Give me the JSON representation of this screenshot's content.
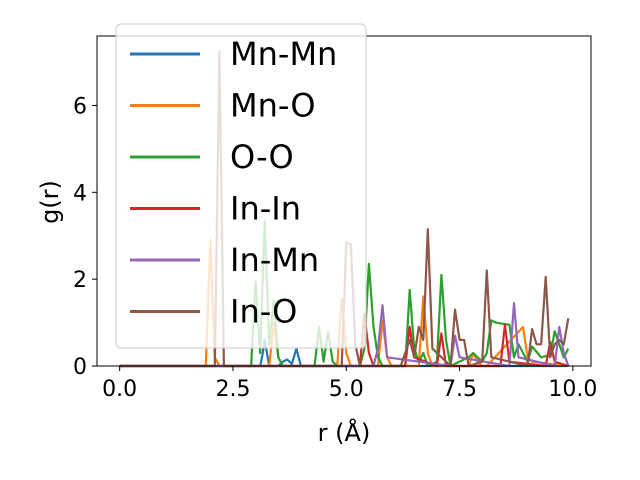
{
  "chart_data": {
    "type": "line",
    "title": "",
    "xlabel": "r (Å)",
    "ylabel": "g(r)",
    "xlim": [
      -0.5,
      10.4
    ],
    "ylim": [
      0,
      7.6
    ],
    "xticks": [
      0.0,
      2.5,
      5.0,
      7.5,
      10.0
    ],
    "xtick_labels": [
      "0.0",
      "2.5",
      "5.0",
      "7.5",
      "10.0"
    ],
    "yticks": [
      0,
      2,
      4,
      6
    ],
    "ytick_labels": [
      "0",
      "2",
      "4",
      "6"
    ],
    "grid": false,
    "legend_position": "top-left",
    "series": [
      {
        "name": "Mn-Mn",
        "color": "#1f77b4",
        "x": [
          0,
          3.1,
          3.15,
          3.2,
          3.3,
          3.5,
          3.6,
          3.7,
          3.8,
          3.9,
          4.0,
          4.1,
          9.9
        ],
        "y": [
          0,
          0,
          0.25,
          0.6,
          0,
          0,
          0.1,
          0.15,
          0.05,
          0.4,
          0,
          0,
          0
        ]
      },
      {
        "name": "Mn-O",
        "color": "#ff7f0e",
        "x": [
          0,
          1.9,
          2.0,
          2.1,
          2.2,
          3.3,
          3.4,
          3.5,
          3.6,
          4.8,
          4.9,
          5.0,
          5.1,
          5.7,
          5.8,
          5.9,
          6.0,
          6.6,
          6.7,
          6.8,
          6.9,
          7.7,
          7.8,
          7.9,
          8.0,
          8.1,
          8.9,
          9.0,
          9.1,
          9.9
        ],
        "y": [
          0,
          0,
          2.9,
          0.2,
          0,
          0,
          1.0,
          0.2,
          0,
          0,
          1.55,
          0.3,
          0,
          0,
          1.05,
          0.2,
          0,
          0,
          1.6,
          0.3,
          0,
          0,
          0.3,
          0.1,
          0,
          0,
          0.9,
          0.2,
          0.1,
          0
        ]
      },
      {
        "name": "O-O",
        "color": "#2ca02c",
        "x": [
          0,
          2.9,
          3.0,
          3.1,
          3.2,
          3.3,
          3.4,
          3.5,
          3.6,
          4.3,
          4.4,
          4.5,
          4.6,
          4.7,
          4.8,
          5.3,
          5.4,
          5.5,
          5.6,
          5.7,
          5.8,
          6.3,
          6.4,
          6.5,
          6.6,
          6.7,
          6.8,
          7.0,
          7.1,
          7.2,
          7.3,
          7.7,
          7.8,
          8.0,
          8.1,
          8.2,
          8.3,
          8.6,
          8.7,
          8.8,
          9.0,
          9.1,
          9.3,
          9.5,
          9.6,
          9.8,
          9.9
        ],
        "y": [
          0,
          0,
          1.95,
          0.3,
          3.35,
          0.5,
          1.5,
          0.2,
          0,
          0,
          0.9,
          0.1,
          0.8,
          0.1,
          0,
          0,
          0.4,
          2.35,
          0.9,
          0.2,
          0,
          0,
          1.75,
          0.4,
          0.1,
          0.3,
          0,
          0.1,
          2.1,
          0.6,
          0,
          0.2,
          0.3,
          0.1,
          0.3,
          1.05,
          1.0,
          0.95,
          0.2,
          0.5,
          0.1,
          0.45,
          0.2,
          0.25,
          0.8,
          0.2,
          0.4
        ]
      },
      {
        "name": "In-In",
        "color": "#d62728",
        "x": [
          0,
          5.3,
          5.4,
          5.5,
          5.6,
          6.3,
          6.4,
          6.5,
          7.0,
          7.1,
          7.2,
          8.4,
          8.5,
          8.6,
          9.4,
          9.5,
          9.6,
          9.9
        ],
        "y": [
          0,
          0,
          1.2,
          0.3,
          0,
          0,
          0.9,
          0.2,
          0,
          0.75,
          0,
          0,
          0.95,
          0.1,
          0,
          0.55,
          0.1,
          0
        ]
      },
      {
        "name": "In-Mn",
        "color": "#9467bd",
        "x": [
          0,
          5.6,
          5.7,
          5.8,
          5.9,
          7.3,
          7.4,
          7.5,
          8.6,
          8.7,
          8.8,
          9.6,
          9.7,
          9.8,
          9.9
        ],
        "y": [
          0,
          0,
          0.4,
          1.4,
          0.2,
          0,
          0.7,
          0.2,
          0,
          1.45,
          0.2,
          0,
          0.9,
          0.3,
          0
        ]
      },
      {
        "name": "In-O",
        "color": "#8c564b",
        "x": [
          0,
          2.1,
          2.2,
          2.3,
          4.9,
          5.0,
          5.1,
          5.2,
          5.3,
          6.2,
          6.3,
          6.4,
          6.5,
          6.6,
          6.7,
          6.8,
          6.9,
          7.3,
          7.4,
          7.5,
          7.6,
          7.7,
          8.0,
          8.1,
          8.2,
          9.0,
          9.1,
          9.2,
          9.3,
          9.4,
          9.5,
          9.6,
          9.7,
          9.8,
          9.9
        ],
        "y": [
          0,
          0,
          7.25,
          0,
          0,
          2.85,
          2.8,
          0.5,
          0,
          0,
          0.3,
          0.6,
          0.2,
          0.9,
          0.6,
          3.15,
          0.4,
          0,
          1.3,
          0.6,
          0.6,
          0,
          0.1,
          2.2,
          0.2,
          0,
          0.85,
          0.5,
          0.5,
          2.05,
          0.2,
          0.5,
          0.6,
          0.5,
          1.1
        ]
      }
    ]
  }
}
